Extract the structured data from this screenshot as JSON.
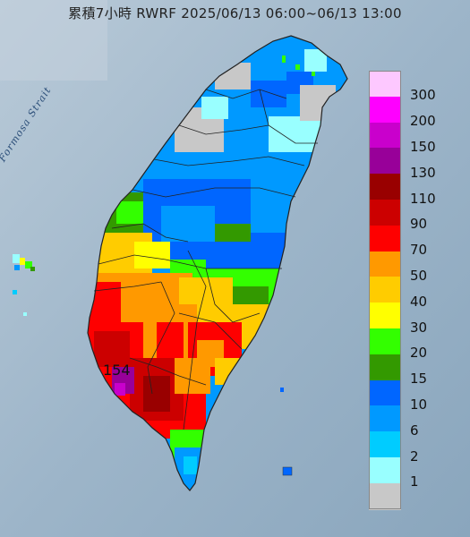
{
  "title": "累積7小時 RWRF 2025/06/13 06:00~06/13 13:00",
  "strait_label": "Formosa Strait",
  "max_value": "154",
  "legend": [
    {
      "label": "300",
      "color": "#fdc8ff"
    },
    {
      "label": "200",
      "color": "#fe00ff"
    },
    {
      "label": "150",
      "color": "#c900cc"
    },
    {
      "label": "130",
      "color": "#980099"
    },
    {
      "label": "110",
      "color": "#990000"
    },
    {
      "label": "90",
      "color": "#cc0000"
    },
    {
      "label": "70",
      "color": "#fe0000"
    },
    {
      "label": "50",
      "color": "#ff9900"
    },
    {
      "label": "40",
      "color": "#ffcc00"
    },
    {
      "label": "30",
      "color": "#ffff00"
    },
    {
      "label": "20",
      "color": "#33ff00"
    },
    {
      "label": "15",
      "color": "#339900"
    },
    {
      "label": "10",
      "color": "#0066ff"
    },
    {
      "label": "6",
      "color": "#0099ff"
    },
    {
      "label": "2",
      "color": "#00ccff"
    },
    {
      "label": "1",
      "color": "#99ffff"
    },
    {
      "label": "",
      "color": "#c8c8c8"
    }
  ]
}
